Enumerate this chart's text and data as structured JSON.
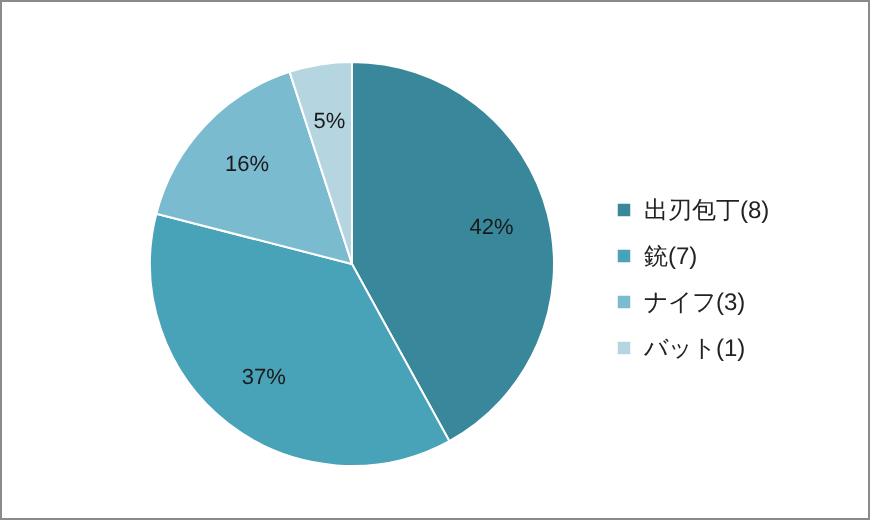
{
  "chart_data": {
    "type": "pie",
    "categories": [
      "出刃包丁(8)",
      "銃(7)",
      "ナイフ(3)",
      "バット(1)"
    ],
    "values": [
      42,
      37,
      16,
      5
    ],
    "colors": [
      "#38879a",
      "#48a2b8",
      "#7bbbcf",
      "#b5d6e1"
    ],
    "value_labels": [
      "42%",
      "37%",
      "16%",
      "5%"
    ],
    "legend": "right"
  }
}
